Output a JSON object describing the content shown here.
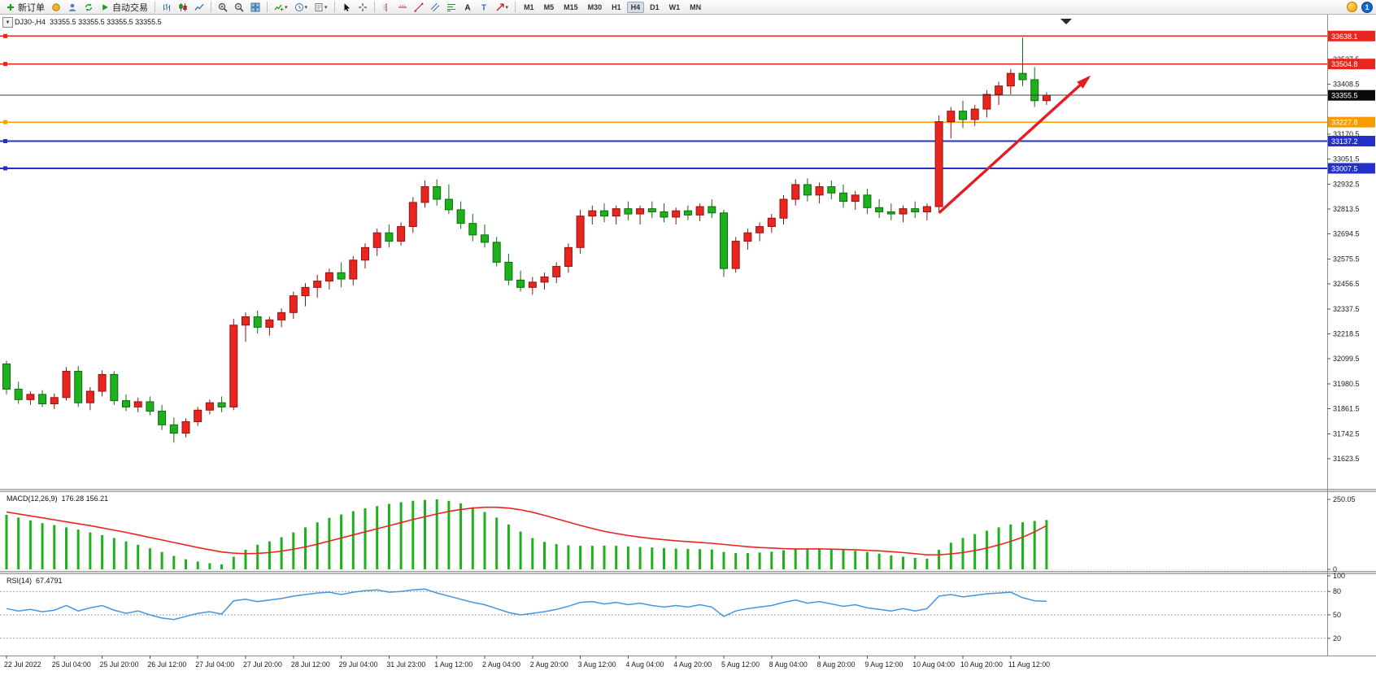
{
  "chart": {
    "symbol_title": "DJ30-,H4",
    "ohlc_quote": "33355.5 33355.5 33355.5 33355.5",
    "dropdown_glyph": "▼"
  },
  "toolbar": {
    "groups": [
      {
        "name": "trade-group",
        "items": [
          {
            "name": "new-order-button",
            "icon": "new-order",
            "label": "新订单"
          },
          {
            "name": "signals-button",
            "icon": "lamp"
          },
          {
            "name": "community-button",
            "icon": "community"
          },
          {
            "name": "refresh-button",
            "icon": "refresh"
          },
          {
            "name": "autotrade-button",
            "icon": "autotrade",
            "label": "自动交易"
          }
        ]
      },
      {
        "name": "chart-type-group",
        "items": [
          {
            "name": "bar-chart-button",
            "icon": "bar-chart"
          },
          {
            "name": "candlestick-chart-button",
            "icon": "candle-chart"
          },
          {
            "name": "line-chart-button",
            "icon": "line-chart"
          }
        ]
      },
      {
        "name": "zoom-group",
        "items": [
          {
            "name": "zoom-in-button",
            "icon": "zoom-in"
          },
          {
            "name": "zoom-out-button",
            "icon": "zoom-out"
          },
          {
            "name": "tile-windows-button",
            "icon": "tile"
          }
        ]
      },
      {
        "name": "objects-group",
        "items": [
          {
            "name": "indicators-button",
            "icon": "indicators",
            "caret": true
          },
          {
            "name": "periods-button",
            "icon": "periods",
            "caret": true
          },
          {
            "name": "templates-button",
            "icon": "template",
            "caret": true
          }
        ]
      },
      {
        "name": "cursor-group",
        "items": [
          {
            "name": "cursor-button",
            "icon": "cursor"
          },
          {
            "name": "crosshair-button",
            "icon": "crosshair"
          }
        ]
      },
      {
        "name": "draw-group",
        "items": [
          {
            "name": "vertical-line-button",
            "icon": "vline"
          },
          {
            "name": "horizontal-line-button",
            "icon": "hline"
          },
          {
            "name": "trendline-button",
            "icon": "trendline"
          },
          {
            "name": "channel-button",
            "icon": "channel"
          },
          {
            "name": "fibonacci-button",
            "icon": "fibonacci"
          },
          {
            "name": "text-button",
            "icon": "text"
          },
          {
            "name": "label-button",
            "icon": "label"
          },
          {
            "name": "arrows-button",
            "icon": "arrows",
            "caret": true
          }
        ]
      }
    ],
    "timeframes": [
      {
        "label": "M1"
      },
      {
        "label": "M5"
      },
      {
        "label": "M15"
      },
      {
        "label": "M30"
      },
      {
        "label": "H1"
      },
      {
        "label": "H4",
        "active": true
      },
      {
        "label": "D1"
      },
      {
        "label": "W1"
      },
      {
        "label": "MN"
      }
    ],
    "status_icons": [
      {
        "name": "connection-indicator",
        "text": ""
      },
      {
        "name": "news-count-badge",
        "text": "1"
      }
    ]
  },
  "chart_data": {
    "type": "candlestick",
    "symbol": "DJ30-",
    "timeframe": "H4",
    "color_convention": "red-up-green-down",
    "colors": {
      "bull_fill": "#e8251f",
      "bull_stroke": "#941313",
      "bear_fill": "#1db11d",
      "bear_stroke": "#0c6e0c",
      "level_red": "#e8251f",
      "level_orange": "#f79b00",
      "level_blue": "#2431c8",
      "current_price_line": "#3c3c3c",
      "arrow": "#e51c23",
      "macd_histogram": "#1db11d",
      "macd_signal": "#e8251f",
      "rsi_line": "#4696dc"
    },
    "price_axis": {
      "range_top": 33740,
      "range_bottom": 31480,
      "labels": [
        33527.5,
        33408.5,
        33170.5,
        33051.5,
        32932.5,
        32813.5,
        32694.5,
        32575.5,
        32456.5,
        32337.5,
        32218.5,
        32099.5,
        31980.5,
        31861.5,
        31742.5,
        31623.5
      ]
    },
    "time_labels": [
      "22 Jul 2022",
      "25 Jul 04:00",
      "25 Jul 20:00",
      "26 Jul 12:00",
      "27 Jul 04:00",
      "27 Jul 20:00",
      "28 Jul 12:00",
      "29 Jul 04:00",
      "31 Jul 23:00",
      "1 Aug 12:00",
      "2 Aug 04:00",
      "2 Aug 20:00",
      "3 Aug 12:00",
      "4 Aug 04:00",
      "4 Aug 20:00",
      "5 Aug 12:00",
      "8 Aug 04:00",
      "8 Aug 20:00",
      "9 Aug 12:00",
      "10 Aug 04:00",
      "10 Aug 20:00",
      "11 Aug 12:00"
    ],
    "bars_per_time_label": 4,
    "candles": [
      [
        32075,
        32090,
        31930,
        31955
      ],
      [
        31955,
        31990,
        31885,
        31905
      ],
      [
        31905,
        31945,
        31880,
        31930
      ],
      [
        31930,
        31950,
        31870,
        31885
      ],
      [
        31885,
        31935,
        31860,
        31915
      ],
      [
        31915,
        32060,
        31900,
        32040
      ],
      [
        32040,
        32065,
        31870,
        31890
      ],
      [
        31890,
        31965,
        31855,
        31945
      ],
      [
        31945,
        32045,
        31920,
        32025
      ],
      [
        32025,
        32040,
        31880,
        31900
      ],
      [
        31900,
        31930,
        31850,
        31870
      ],
      [
        31870,
        31915,
        31845,
        31895
      ],
      [
        31895,
        31920,
        31830,
        31850
      ],
      [
        31850,
        31880,
        31760,
        31785
      ],
      [
        31785,
        31820,
        31700,
        31745
      ],
      [
        31745,
        31815,
        31725,
        31800
      ],
      [
        31800,
        31870,
        31780,
        31855
      ],
      [
        31855,
        31905,
        31835,
        31890
      ],
      [
        31890,
        31920,
        31845,
        31870
      ],
      [
        31870,
        32290,
        31855,
        32260
      ],
      [
        32260,
        32320,
        32180,
        32300
      ],
      [
        32300,
        32330,
        32220,
        32250
      ],
      [
        32250,
        32300,
        32210,
        32285
      ],
      [
        32285,
        32340,
        32250,
        32320
      ],
      [
        32320,
        32420,
        32290,
        32400
      ],
      [
        32400,
        32460,
        32350,
        32440
      ],
      [
        32440,
        32500,
        32390,
        32470
      ],
      [
        32470,
        32530,
        32430,
        32510
      ],
      [
        32510,
        32560,
        32440,
        32480
      ],
      [
        32480,
        32590,
        32450,
        32570
      ],
      [
        32570,
        32650,
        32530,
        32630
      ],
      [
        32630,
        32720,
        32590,
        32700
      ],
      [
        32700,
        32740,
        32630,
        32660
      ],
      [
        32660,
        32750,
        32640,
        32730
      ],
      [
        32730,
        32870,
        32700,
        32845
      ],
      [
        32845,
        32950,
        32820,
        32920
      ],
      [
        32920,
        32955,
        32830,
        32860
      ],
      [
        32860,
        32930,
        32790,
        32810
      ],
      [
        32810,
        32850,
        32720,
        32745
      ],
      [
        32745,
        32790,
        32660,
        32690
      ],
      [
        32690,
        32740,
        32630,
        32655
      ],
      [
        32655,
        32680,
        32540,
        32560
      ],
      [
        32560,
        32600,
        32450,
        32475
      ],
      [
        32475,
        32520,
        32420,
        32440
      ],
      [
        32440,
        32490,
        32405,
        32465
      ],
      [
        32465,
        32510,
        32430,
        32490
      ],
      [
        32490,
        32560,
        32460,
        32540
      ],
      [
        32540,
        32650,
        32510,
        32630
      ],
      [
        32630,
        32810,
        32600,
        32780
      ],
      [
        32780,
        32830,
        32740,
        32805
      ],
      [
        32805,
        32840,
        32750,
        32780
      ],
      [
        32780,
        32830,
        32740,
        32815
      ],
      [
        32815,
        32850,
        32760,
        32790
      ],
      [
        32790,
        32830,
        32740,
        32815
      ],
      [
        32815,
        32850,
        32770,
        32800
      ],
      [
        32800,
        32840,
        32750,
        32775
      ],
      [
        32775,
        32820,
        32740,
        32805
      ],
      [
        32805,
        32830,
        32760,
        32785
      ],
      [
        32785,
        32840,
        32755,
        32825
      ],
      [
        32825,
        32860,
        32770,
        32795
      ],
      [
        32795,
        32810,
        32490,
        32530
      ],
      [
        32530,
        32680,
        32510,
        32660
      ],
      [
        32660,
        32720,
        32620,
        32700
      ],
      [
        32700,
        32750,
        32660,
        32730
      ],
      [
        32730,
        32790,
        32700,
        32770
      ],
      [
        32770,
        32880,
        32740,
        32860
      ],
      [
        32860,
        32955,
        32830,
        32930
      ],
      [
        32930,
        32960,
        32850,
        32880
      ],
      [
        32880,
        32940,
        32840,
        32920
      ],
      [
        32920,
        32950,
        32860,
        32890
      ],
      [
        32890,
        32930,
        32820,
        32850
      ],
      [
        32850,
        32900,
        32810,
        32880
      ],
      [
        32880,
        32910,
        32790,
        32820
      ],
      [
        32820,
        32860,
        32770,
        32800
      ],
      [
        32800,
        32840,
        32760,
        32790
      ],
      [
        32790,
        32830,
        32750,
        32815
      ],
      [
        32815,
        32850,
        32770,
        32800
      ],
      [
        32800,
        32840,
        32760,
        32825
      ],
      [
        32825,
        33260,
        32800,
        33230
      ],
      [
        33230,
        33300,
        33150,
        33280
      ],
      [
        33280,
        33330,
        33200,
        33240
      ],
      [
        33240,
        33310,
        33210,
        33290
      ],
      [
        33290,
        33380,
        33250,
        33360
      ],
      [
        33360,
        33420,
        33310,
        33400
      ],
      [
        33400,
        33480,
        33360,
        33460
      ],
      [
        33460,
        33630,
        33400,
        33430
      ],
      [
        33430,
        33490,
        33300,
        33330
      ],
      [
        33330,
        33370,
        33310,
        33355.5
      ]
    ],
    "horizontal_lines": [
      {
        "price": 33638.1,
        "badge": "33638.1",
        "color": "#e8251f"
      },
      {
        "price": 33504.8,
        "badge": "33504.8",
        "color": "#e8251f"
      },
      {
        "price": 33227.8,
        "badge": "33227.8",
        "color": "#f79b00"
      },
      {
        "price": 33137.2,
        "badge": "33137.2",
        "color": "#2431c8"
      },
      {
        "price": 33007.5,
        "badge": "33007.5",
        "color": "#2431c8"
      }
    ],
    "current_price": {
      "value": 33355.5,
      "badge": "33355.5",
      "badge_bg": "#0a0a0a"
    },
    "annotation_arrow": {
      "from": {
        "bar_index": 78,
        "price": 32795
      },
      "to": {
        "bar_index": 90.5,
        "price": 33440
      },
      "color": "#e51c23"
    },
    "indicators": {
      "macd": {
        "label": "MACD(12,26,9)",
        "values_text": "176.28 156.21",
        "scale_max": 250.05,
        "scale_labels": [
          "250.05",
          "0"
        ],
        "histogram": [
          195,
          185,
          175,
          165,
          158,
          150,
          142,
          132,
          122,
          112,
          100,
          88,
          75,
          62,
          48,
          36,
          28,
          22,
          18,
          45,
          70,
          88,
          100,
          115,
          132,
          150,
          168,
          184,
          196,
          208,
          218,
          226,
          234,
          240,
          245,
          248,
          250,
          245,
          236,
          222,
          205,
          185,
          160,
          135,
          112,
          98,
          90,
          86,
          84,
          84,
          85,
          84,
          82,
          80,
          78,
          76,
          74,
          73,
          72,
          71,
          62,
          58,
          58,
          60,
          63,
          68,
          73,
          75,
          75,
          73,
          70,
          66,
          62,
          56,
          50,
          45,
          41,
          38,
          70,
          95,
          112,
          126,
          138,
          150,
          160,
          168,
          173,
          176.28,
          0,
          0
        ],
        "signal": [
          205,
          198,
          191,
          184,
          177,
          170,
          163,
          156,
          148,
          140,
          132,
          123,
          114,
          105,
          96,
          87,
          78,
          70,
          62,
          58,
          56,
          57,
          60,
          65,
          72,
          80,
          90,
          101,
          112,
          123,
          134,
          145,
          156,
          167,
          178,
          188,
          198,
          207,
          214,
          219,
          222,
          222,
          219,
          213,
          204,
          193,
          181,
          169,
          157,
          146,
          136,
          128,
          121,
          115,
          110,
          106,
          102,
          99,
          96,
          93,
          89,
          85,
          81,
          78,
          76,
          74,
          73,
          73,
          73,
          72,
          71,
          70,
          68,
          66,
          63,
          60,
          56,
          52,
          52,
          55,
          60,
          67,
          76,
          87,
          100,
          115,
          134,
          156.21,
          0,
          0
        ]
      },
      "rsi": {
        "label": "RSI(14)",
        "value_text": "67.4791",
        "levels": [
          80,
          50,
          20
        ],
        "scale_labels": [
          "100",
          "80",
          "50",
          "20"
        ],
        "series": [
          58,
          55,
          57,
          54,
          56,
          62,
          55,
          59,
          62,
          56,
          52,
          55,
          50,
          46,
          44,
          48,
          52,
          54,
          51,
          68,
          70,
          67,
          69,
          71,
          74,
          76,
          78,
          79,
          76,
          79,
          81,
          82,
          79,
          80,
          82,
          83,
          78,
          74,
          70,
          66,
          63,
          58,
          53,
          50,
          52,
          54,
          57,
          61,
          66,
          67,
          64,
          66,
          63,
          65,
          62,
          60,
          62,
          60,
          63,
          60,
          48,
          55,
          58,
          60,
          62,
          66,
          69,
          65,
          67,
          64,
          61,
          63,
          59,
          57,
          55,
          58,
          55,
          58,
          74,
          76,
          73,
          75,
          77,
          78,
          79,
          72,
          68,
          67.48,
          0,
          0
        ]
      }
    }
  }
}
